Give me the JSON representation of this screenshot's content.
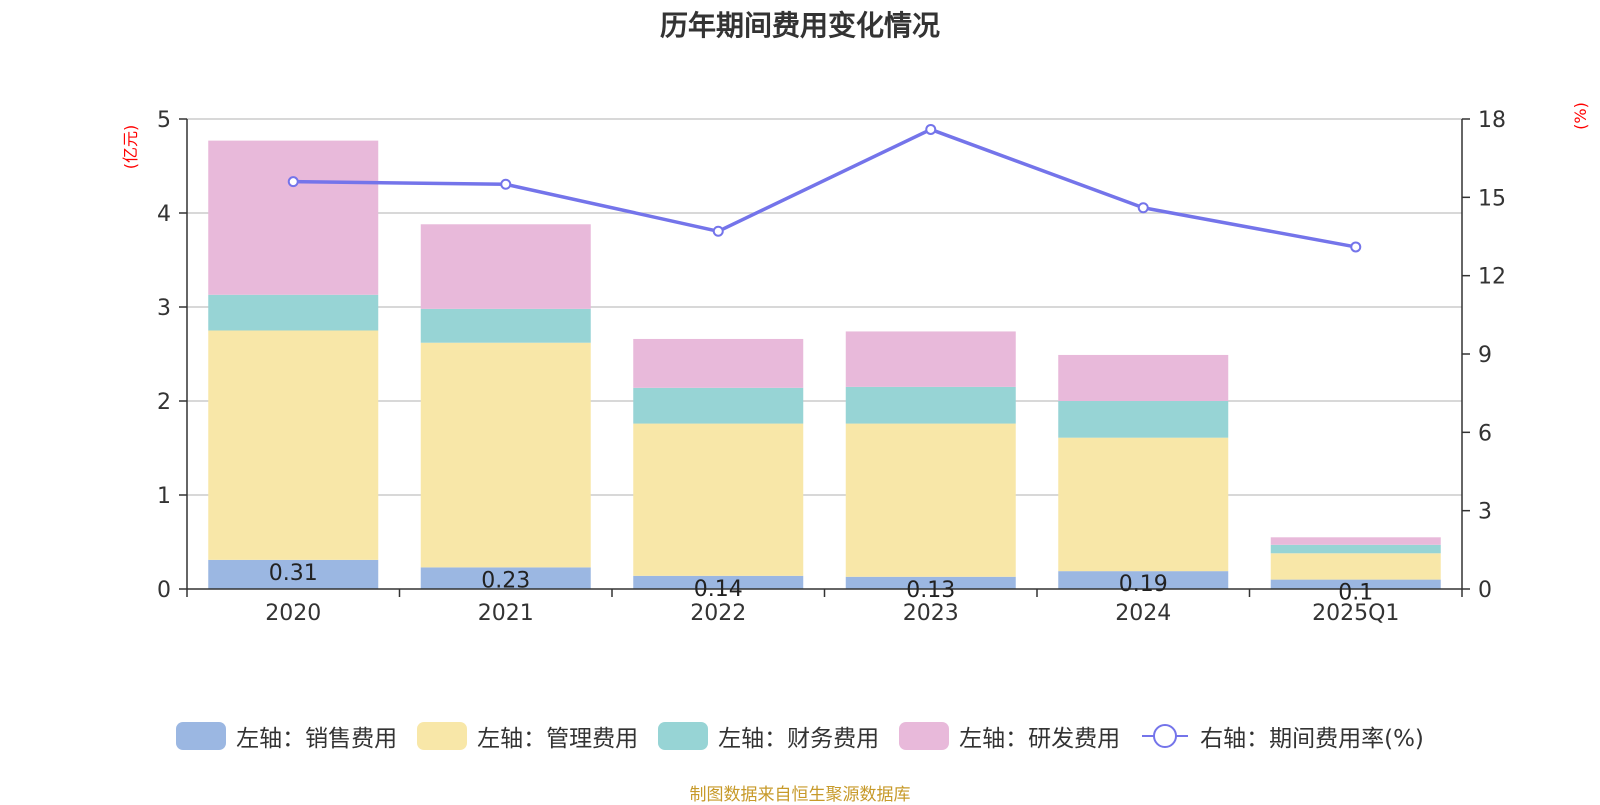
{
  "colors": {
    "sales": "#9bb7e2",
    "admin": "#f8e7a8",
    "finance": "#97d4d5",
    "rd": "#e8b9da",
    "rate_line": "#7474ea",
    "unit": "#ff0000",
    "source": "#c79a2a"
  },
  "chart_data": {
    "type": "bar",
    "title": "历年期间费用变化情况",
    "categories": [
      "2020",
      "2021",
      "2022",
      "2023",
      "2024",
      "2025Q1"
    ],
    "left_axis": {
      "unit": "(亿元)",
      "ylim": [
        0,
        5
      ],
      "ticks": [
        "0",
        "1",
        "2",
        "3",
        "4",
        "5"
      ]
    },
    "right_axis": {
      "unit": "(%)",
      "ylim": [
        0,
        18
      ],
      "ticks": [
        "0",
        "3",
        "6",
        "9",
        "12",
        "15",
        "18"
      ]
    },
    "series": [
      {
        "key": "sales",
        "name": "左轴：销售费用",
        "axis": "left",
        "stack": true,
        "values": [
          0.31,
          0.23,
          0.14,
          0.13,
          0.19,
          0.1
        ],
        "labels": [
          "0.31",
          "0.23",
          "0.14",
          "0.13",
          "0.19",
          "0.1"
        ]
      },
      {
        "key": "admin",
        "name": "左轴：管理费用",
        "axis": "left",
        "stack": true,
        "values": [
          2.44,
          2.39,
          1.62,
          1.63,
          1.42,
          0.28
        ]
      },
      {
        "key": "finance",
        "name": "左轴：财务费用",
        "axis": "left",
        "stack": true,
        "values": [
          0.38,
          0.36,
          0.38,
          0.39,
          0.39,
          0.09
        ]
      },
      {
        "key": "rd",
        "name": "左轴：研发费用",
        "axis": "left",
        "stack": true,
        "values": [
          1.64,
          0.9,
          0.52,
          0.59,
          0.49,
          0.08
        ]
      },
      {
        "key": "rate",
        "name": "右轴：期间费用率(%)",
        "axis": "right",
        "type": "line",
        "values": [
          15.6,
          15.5,
          13.7,
          17.6,
          14.6,
          13.1
        ]
      }
    ],
    "grid": true,
    "legend_position": "bottom"
  },
  "footer": {
    "source": "制图数据来自恒生聚源数据库"
  }
}
